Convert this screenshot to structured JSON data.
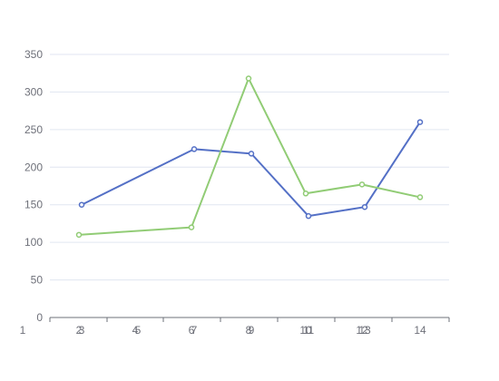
{
  "chart_data": {
    "type": "line",
    "title": "",
    "xlabel": "",
    "ylabel": "",
    "ylim": [
      0,
      350
    ],
    "yticks": [
      0,
      50,
      100,
      150,
      200,
      250,
      300,
      350
    ],
    "x_tick_labels": [
      "1",
      "2",
      "3",
      "4",
      "5",
      "6",
      "7",
      "8",
      "9",
      "10",
      "11",
      "12",
      "13",
      "14"
    ],
    "grid": "horizontal",
    "series": [
      {
        "color": "#5470c6",
        "points": [
          {
            "x": "3",
            "y": 150
          },
          {
            "x": "7",
            "y": 224
          },
          {
            "x": "9",
            "y": 218
          },
          {
            "x": "11",
            "y": 135
          },
          {
            "x": "13",
            "y": 147
          },
          {
            "x": "14",
            "y": 260
          }
        ]
      },
      {
        "color": "#91cc75",
        "points": [
          {
            "x": "2",
            "y": 110
          },
          {
            "x": "6",
            "y": 120
          },
          {
            "x": "8",
            "y": 318
          },
          {
            "x": "10",
            "y": 165
          },
          {
            "x": "12",
            "y": 177
          },
          {
            "x": "14",
            "y": 160
          }
        ]
      }
    ]
  }
}
